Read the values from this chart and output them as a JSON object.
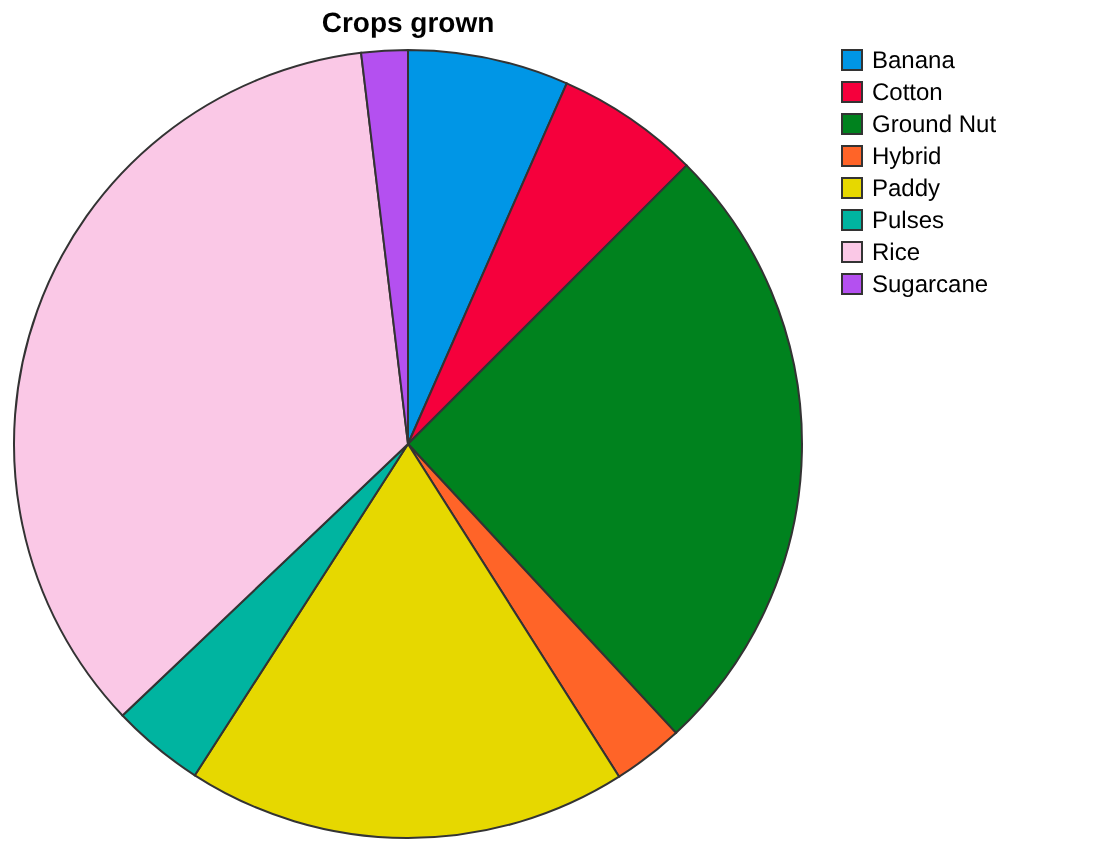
{
  "chart_data": {
    "type": "pie",
    "title": "Crops grown",
    "categories": [
      "Banana",
      "Cotton",
      "Ground Nut",
      "Hybrid",
      "Paddy",
      "Pulses",
      "Rice",
      "Sugarcane"
    ],
    "values": [
      6.6,
      5.9,
      25.6,
      2.9,
      18.1,
      3.8,
      35.2,
      1.9
    ],
    "colors": [
      "#0096e6",
      "#f5003c",
      "#00821e",
      "#ff6428",
      "#e6d800",
      "#00b4a0",
      "#fac8e6",
      "#b450f0"
    ],
    "legend": "top right"
  }
}
